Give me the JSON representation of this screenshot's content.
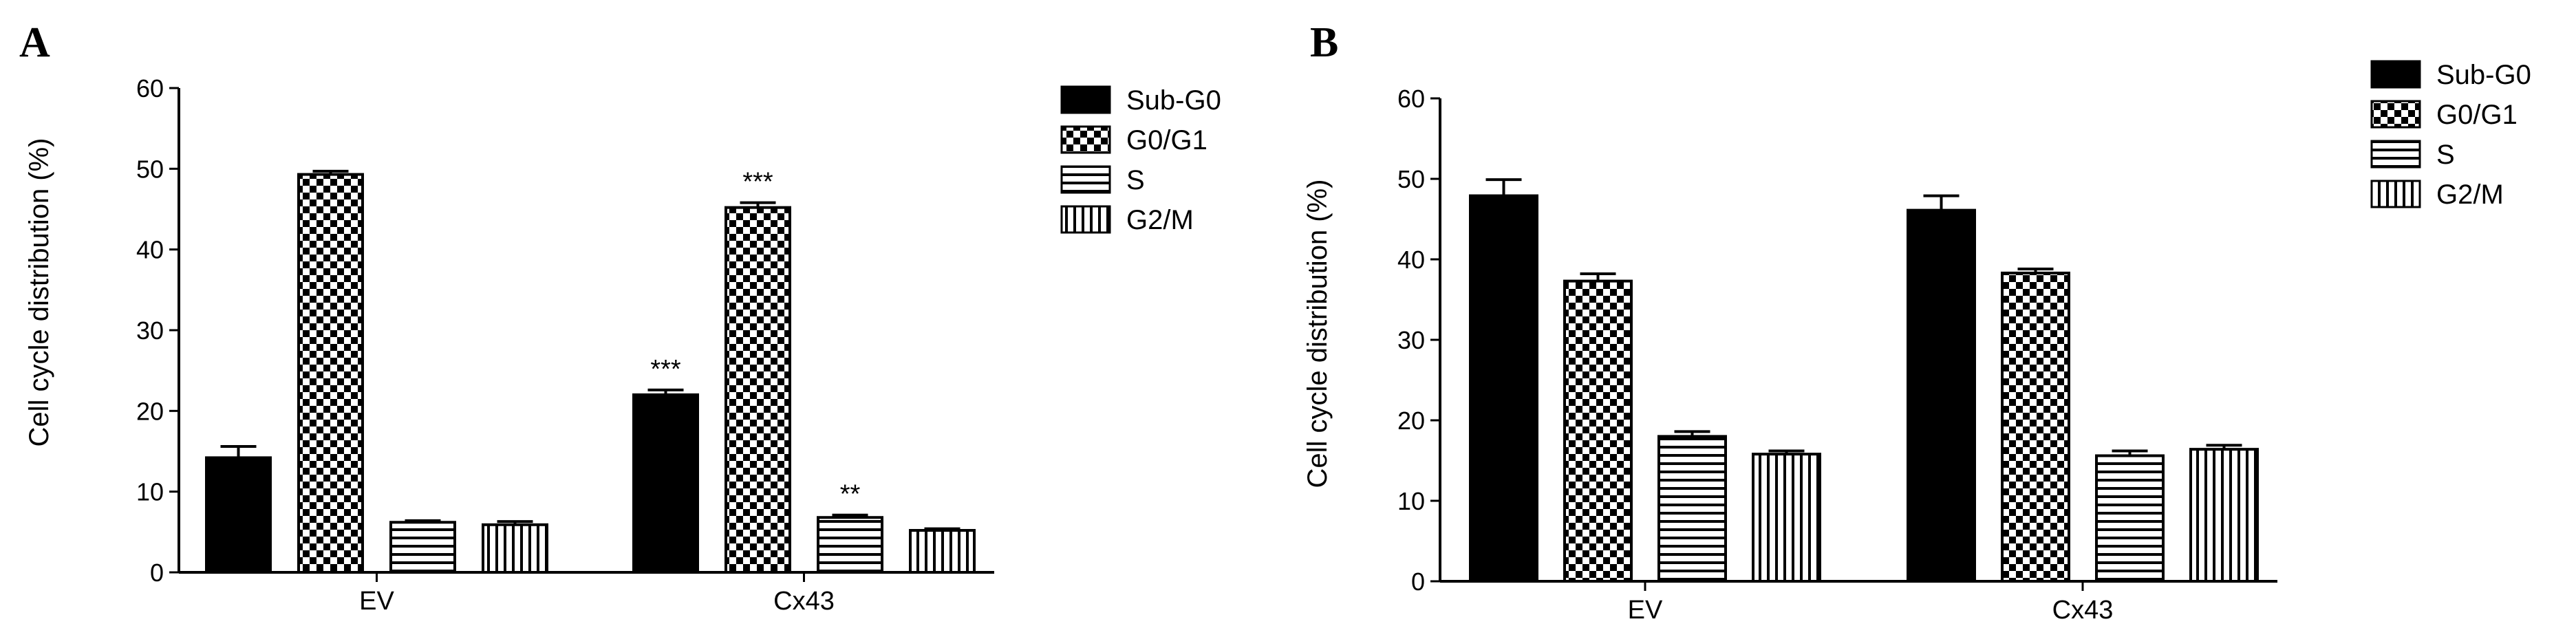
{
  "chart_data": [
    {
      "panel": "A",
      "type": "bar",
      "ylabel": "Cell cycle distribution (%)",
      "ylim": [
        0,
        60
      ],
      "yticks": [
        "0",
        "10",
        "20",
        "30",
        "40",
        "50",
        "60"
      ],
      "categories": [
        "EV",
        "Cx43"
      ],
      "legend_position": "right",
      "series": [
        {
          "name": "Sub-G0",
          "pattern": "solid",
          "values": [
            14.2,
            22.0
          ],
          "errors": [
            1.4,
            0.6
          ],
          "annotations": [
            "",
            "***"
          ]
        },
        {
          "name": "G0/G1",
          "pattern": "checker",
          "values": [
            49.3,
            45.2
          ],
          "errors": [
            0.4,
            0.6
          ],
          "annotations": [
            "",
            "***"
          ]
        },
        {
          "name": "S",
          "pattern": "horizontal",
          "values": [
            6.2,
            6.8
          ],
          "errors": [
            0.2,
            0.3
          ],
          "annotations": [
            "",
            "**"
          ]
        },
        {
          "name": "G2/M",
          "pattern": "vertical",
          "values": [
            5.9,
            5.2
          ],
          "errors": [
            0.4,
            0.2
          ],
          "annotations": [
            "",
            ""
          ]
        }
      ]
    },
    {
      "panel": "B",
      "type": "bar",
      "ylabel": "Cell cycle distribution (%)",
      "ylim": [
        0,
        60
      ],
      "yticks": [
        "0",
        "10",
        "20",
        "30",
        "40",
        "50",
        "60"
      ],
      "categories": [
        "EV",
        "Cx43"
      ],
      "legend_position": "right",
      "series": [
        {
          "name": "Sub-G0",
          "pattern": "solid",
          "values": [
            47.9,
            46.1
          ],
          "errors": [
            2.0,
            1.8
          ],
          "annotations": [
            "",
            ""
          ]
        },
        {
          "name": "G0/G1",
          "pattern": "checker",
          "values": [
            37.3,
            38.3
          ],
          "errors": [
            0.9,
            0.5
          ],
          "annotations": [
            "",
            ""
          ]
        },
        {
          "name": "S",
          "pattern": "horizontal",
          "values": [
            18.0,
            15.6
          ],
          "errors": [
            0.6,
            0.6
          ],
          "annotations": [
            "",
            ""
          ]
        },
        {
          "name": "G2/M",
          "pattern": "vertical",
          "values": [
            15.8,
            16.4
          ],
          "errors": [
            0.4,
            0.5
          ],
          "annotations": [
            "",
            ""
          ]
        }
      ]
    }
  ],
  "colors": {
    "ink": "#000000",
    "background": "#ffffff"
  }
}
